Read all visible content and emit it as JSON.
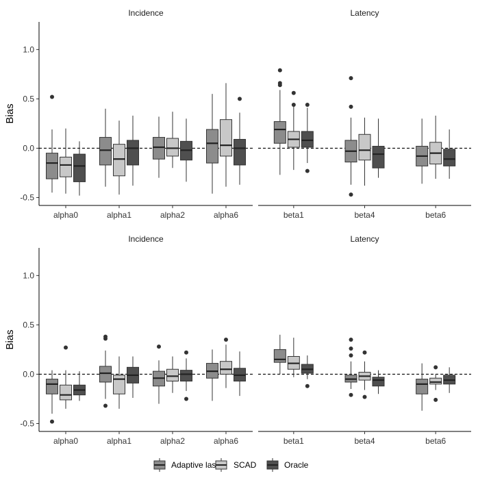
{
  "legend": [
    "Adaptive lasso",
    "SCAD",
    "Oracle"
  ],
  "colors": {
    "Adaptive lasso": "#8c8c8c",
    "SCAD": "#c8c8c8",
    "Oracle": "#4f4f4f"
  },
  "chart_data": [
    {
      "type": "boxplot",
      "ylabel": "Bias",
      "ylim": [
        -0.58,
        1.28
      ],
      "yticks": [
        -0.5,
        0.0,
        0.5,
        1.0
      ],
      "ytick_labels": [
        "-0.5",
        "0.0",
        "0.5",
        "1.0"
      ],
      "reference_line": 0,
      "panels": [
        {
          "title": "Incidence",
          "categories": [
            "alpha0",
            "alpha1",
            "alpha2",
            "alpha6"
          ],
          "boxes": {
            "Adaptive lasso": [
              {
                "q1": -0.31,
                "median": -0.15,
                "q3": -0.05,
                "lo": -0.45,
                "hi": 0.19,
                "outliers": [
                  0.52
                ]
              },
              {
                "q1": -0.17,
                "median": -0.02,
                "q3": 0.11,
                "lo": -0.39,
                "hi": 0.4,
                "outliers": []
              },
              {
                "q1": -0.11,
                "median": 0.01,
                "q3": 0.11,
                "lo": -0.3,
                "hi": 0.32,
                "outliers": []
              },
              {
                "q1": -0.15,
                "median": 0.05,
                "q3": 0.19,
                "lo": -0.46,
                "hi": 0.55,
                "outliers": []
              }
            ],
            "SCAD": [
              {
                "q1": -0.29,
                "median": -0.17,
                "q3": -0.09,
                "lo": -0.46,
                "hi": 0.2,
                "outliers": []
              },
              {
                "q1": -0.28,
                "median": -0.11,
                "q3": 0.04,
                "lo": -0.47,
                "hi": 0.28,
                "outliers": []
              },
              {
                "q1": -0.08,
                "median": 0.0,
                "q3": 0.1,
                "lo": -0.2,
                "hi": 0.37,
                "outliers": []
              },
              {
                "q1": -0.08,
                "median": 0.03,
                "q3": 0.29,
                "lo": -0.39,
                "hi": 0.66,
                "outliers": []
              }
            ],
            "Oracle": [
              {
                "q1": -0.34,
                "median": -0.18,
                "q3": -0.06,
                "lo": -0.48,
                "hi": 0.07,
                "outliers": []
              },
              {
                "q1": -0.17,
                "median": 0.0,
                "q3": 0.08,
                "lo": -0.38,
                "hi": 0.33,
                "outliers": []
              },
              {
                "q1": -0.12,
                "median": -0.02,
                "q3": 0.07,
                "lo": -0.34,
                "hi": 0.3,
                "outliers": []
              },
              {
                "q1": -0.17,
                "median": 0.0,
                "q3": 0.09,
                "lo": -0.37,
                "hi": 0.36,
                "outliers": [
                  0.5
                ]
              }
            ]
          }
        },
        {
          "title": "Latency",
          "categories": [
            "beta1",
            "beta4",
            "beta6"
          ],
          "boxes": {
            "Adaptive lasso": [
              {
                "q1": 0.05,
                "median": 0.19,
                "q3": 0.27,
                "lo": -0.27,
                "hi": 0.59,
                "outliers": [
                  0.64,
                  0.66,
                  0.79
                ]
              },
              {
                "q1": -0.14,
                "median": -0.03,
                "q3": 0.08,
                "lo": -0.37,
                "hi": 0.31,
                "outliers": [
                  0.42,
                  0.71,
                  -0.47
                ]
              },
              {
                "q1": -0.18,
                "median": -0.08,
                "q3": 0.02,
                "lo": -0.36,
                "hi": 0.3,
                "outliers": []
              }
            ],
            "SCAD": [
              {
                "q1": 0.01,
                "median": 0.09,
                "q3": 0.17,
                "lo": -0.22,
                "hi": 0.43,
                "outliers": [
                  0.44,
                  0.56
                ]
              },
              {
                "q1": -0.12,
                "median": -0.02,
                "q3": 0.14,
                "lo": -0.38,
                "hi": 0.31,
                "outliers": []
              },
              {
                "q1": -0.16,
                "median": -0.05,
                "q3": 0.06,
                "lo": -0.31,
                "hi": 0.33,
                "outliers": []
              }
            ],
            "Oracle": [
              {
                "q1": 0.01,
                "median": 0.08,
                "q3": 0.17,
                "lo": -0.15,
                "hi": 0.41,
                "outliers": [
                  0.44,
                  -0.23
                ]
              },
              {
                "q1": -0.2,
                "median": -0.06,
                "q3": 0.02,
                "lo": -0.3,
                "hi": 0.3,
                "outliers": []
              },
              {
                "q1": -0.18,
                "median": -0.11,
                "q3": -0.01,
                "lo": -0.31,
                "hi": 0.19,
                "outliers": []
              }
            ]
          }
        }
      ]
    },
    {
      "type": "boxplot",
      "ylabel": "Bias",
      "ylim": [
        -0.58,
        1.28
      ],
      "yticks": [
        -0.5,
        0.0,
        0.5,
        1.0
      ],
      "ytick_labels": [
        "-0.5",
        "0.0",
        "0.5",
        "1.0"
      ],
      "reference_line": 0,
      "panels": [
        {
          "title": "Incidence",
          "categories": [
            "alpha0",
            "alpha1",
            "alpha2",
            "alpha6"
          ],
          "boxes": {
            "Adaptive lasso": [
              {
                "q1": -0.2,
                "median": -0.1,
                "q3": -0.05,
                "lo": -0.4,
                "hi": 0.04,
                "outliers": [
                  -0.48
                ]
              },
              {
                "q1": -0.08,
                "median": 0.01,
                "q3": 0.08,
                "lo": -0.25,
                "hi": 0.24,
                "outliers": [
                  0.36,
                  0.38,
                  -0.32
                ]
              },
              {
                "q1": -0.12,
                "median": -0.04,
                "q3": 0.03,
                "lo": -0.3,
                "hi": 0.14,
                "outliers": [
                  0.28
                ]
              },
              {
                "q1": -0.04,
                "median": 0.03,
                "q3": 0.11,
                "lo": -0.27,
                "hi": 0.25,
                "outliers": []
              }
            ],
            "SCAD": [
              {
                "q1": -0.26,
                "median": -0.21,
                "q3": -0.11,
                "lo": -0.35,
                "hi": 0.04,
                "outliers": [
                  0.27
                ]
              },
              {
                "q1": -0.2,
                "median": -0.05,
                "q3": -0.01,
                "lo": -0.35,
                "hi": 0.18,
                "outliers": []
              },
              {
                "q1": -0.07,
                "median": -0.02,
                "q3": 0.05,
                "lo": -0.19,
                "hi": 0.18,
                "outliers": []
              },
              {
                "q1": 0.0,
                "median": 0.05,
                "q3": 0.13,
                "lo": -0.14,
                "hi": 0.3,
                "outliers": [
                  0.35
                ]
              }
            ],
            "Oracle": [
              {
                "q1": -0.21,
                "median": -0.16,
                "q3": -0.11,
                "lo": -0.27,
                "hi": 0.03,
                "outliers": []
              },
              {
                "q1": -0.09,
                "median": -0.01,
                "q3": 0.07,
                "lo": -0.24,
                "hi": 0.18,
                "outliers": []
              },
              {
                "q1": -0.07,
                "median": 0.0,
                "q3": 0.04,
                "lo": -0.17,
                "hi": 0.16,
                "outliers": [
                  0.22,
                  -0.25
                ]
              },
              {
                "q1": -0.07,
                "median": -0.01,
                "q3": 0.06,
                "lo": -0.22,
                "hi": 0.23,
                "outliers": []
              }
            ]
          }
        },
        {
          "title": "Latency",
          "categories": [
            "beta1",
            "beta4",
            "beta6"
          ],
          "boxes": {
            "Adaptive lasso": [
              {
                "q1": 0.12,
                "median": 0.15,
                "q3": 0.25,
                "lo": 0.0,
                "hi": 0.4,
                "outliers": []
              },
              {
                "q1": -0.08,
                "median": -0.05,
                "q3": -0.01,
                "lo": -0.15,
                "hi": 0.13,
                "outliers": [
                  0.19,
                  0.26,
                  0.35,
                  -0.21
                ]
              },
              {
                "q1": -0.2,
                "median": -0.1,
                "q3": -0.05,
                "lo": -0.37,
                "hi": 0.11,
                "outliers": []
              }
            ],
            "SCAD": [
              {
                "q1": 0.05,
                "median": 0.11,
                "q3": 0.18,
                "lo": -0.03,
                "hi": 0.37,
                "outliers": []
              },
              {
                "q1": -0.06,
                "median": -0.02,
                "q3": 0.02,
                "lo": -0.16,
                "hi": 0.13,
                "outliers": [
                  0.22,
                  -0.23
                ]
              },
              {
                "q1": -0.1,
                "median": -0.08,
                "q3": -0.04,
                "lo": -0.16,
                "hi": 0.0,
                "outliers": [
                  0.07,
                  -0.26
                ]
              }
            ],
            "Oracle": [
              {
                "q1": 0.01,
                "median": 0.05,
                "q3": 0.1,
                "lo": -0.05,
                "hi": 0.19,
                "outliers": [
                  -0.12
                ]
              },
              {
                "q1": -0.12,
                "median": -0.06,
                "q3": -0.03,
                "lo": -0.2,
                "hi": 0.04,
                "outliers": []
              },
              {
                "q1": -0.1,
                "median": -0.06,
                "q3": -0.01,
                "lo": -0.19,
                "hi": 0.07,
                "outliers": []
              }
            ]
          }
        }
      ]
    }
  ]
}
